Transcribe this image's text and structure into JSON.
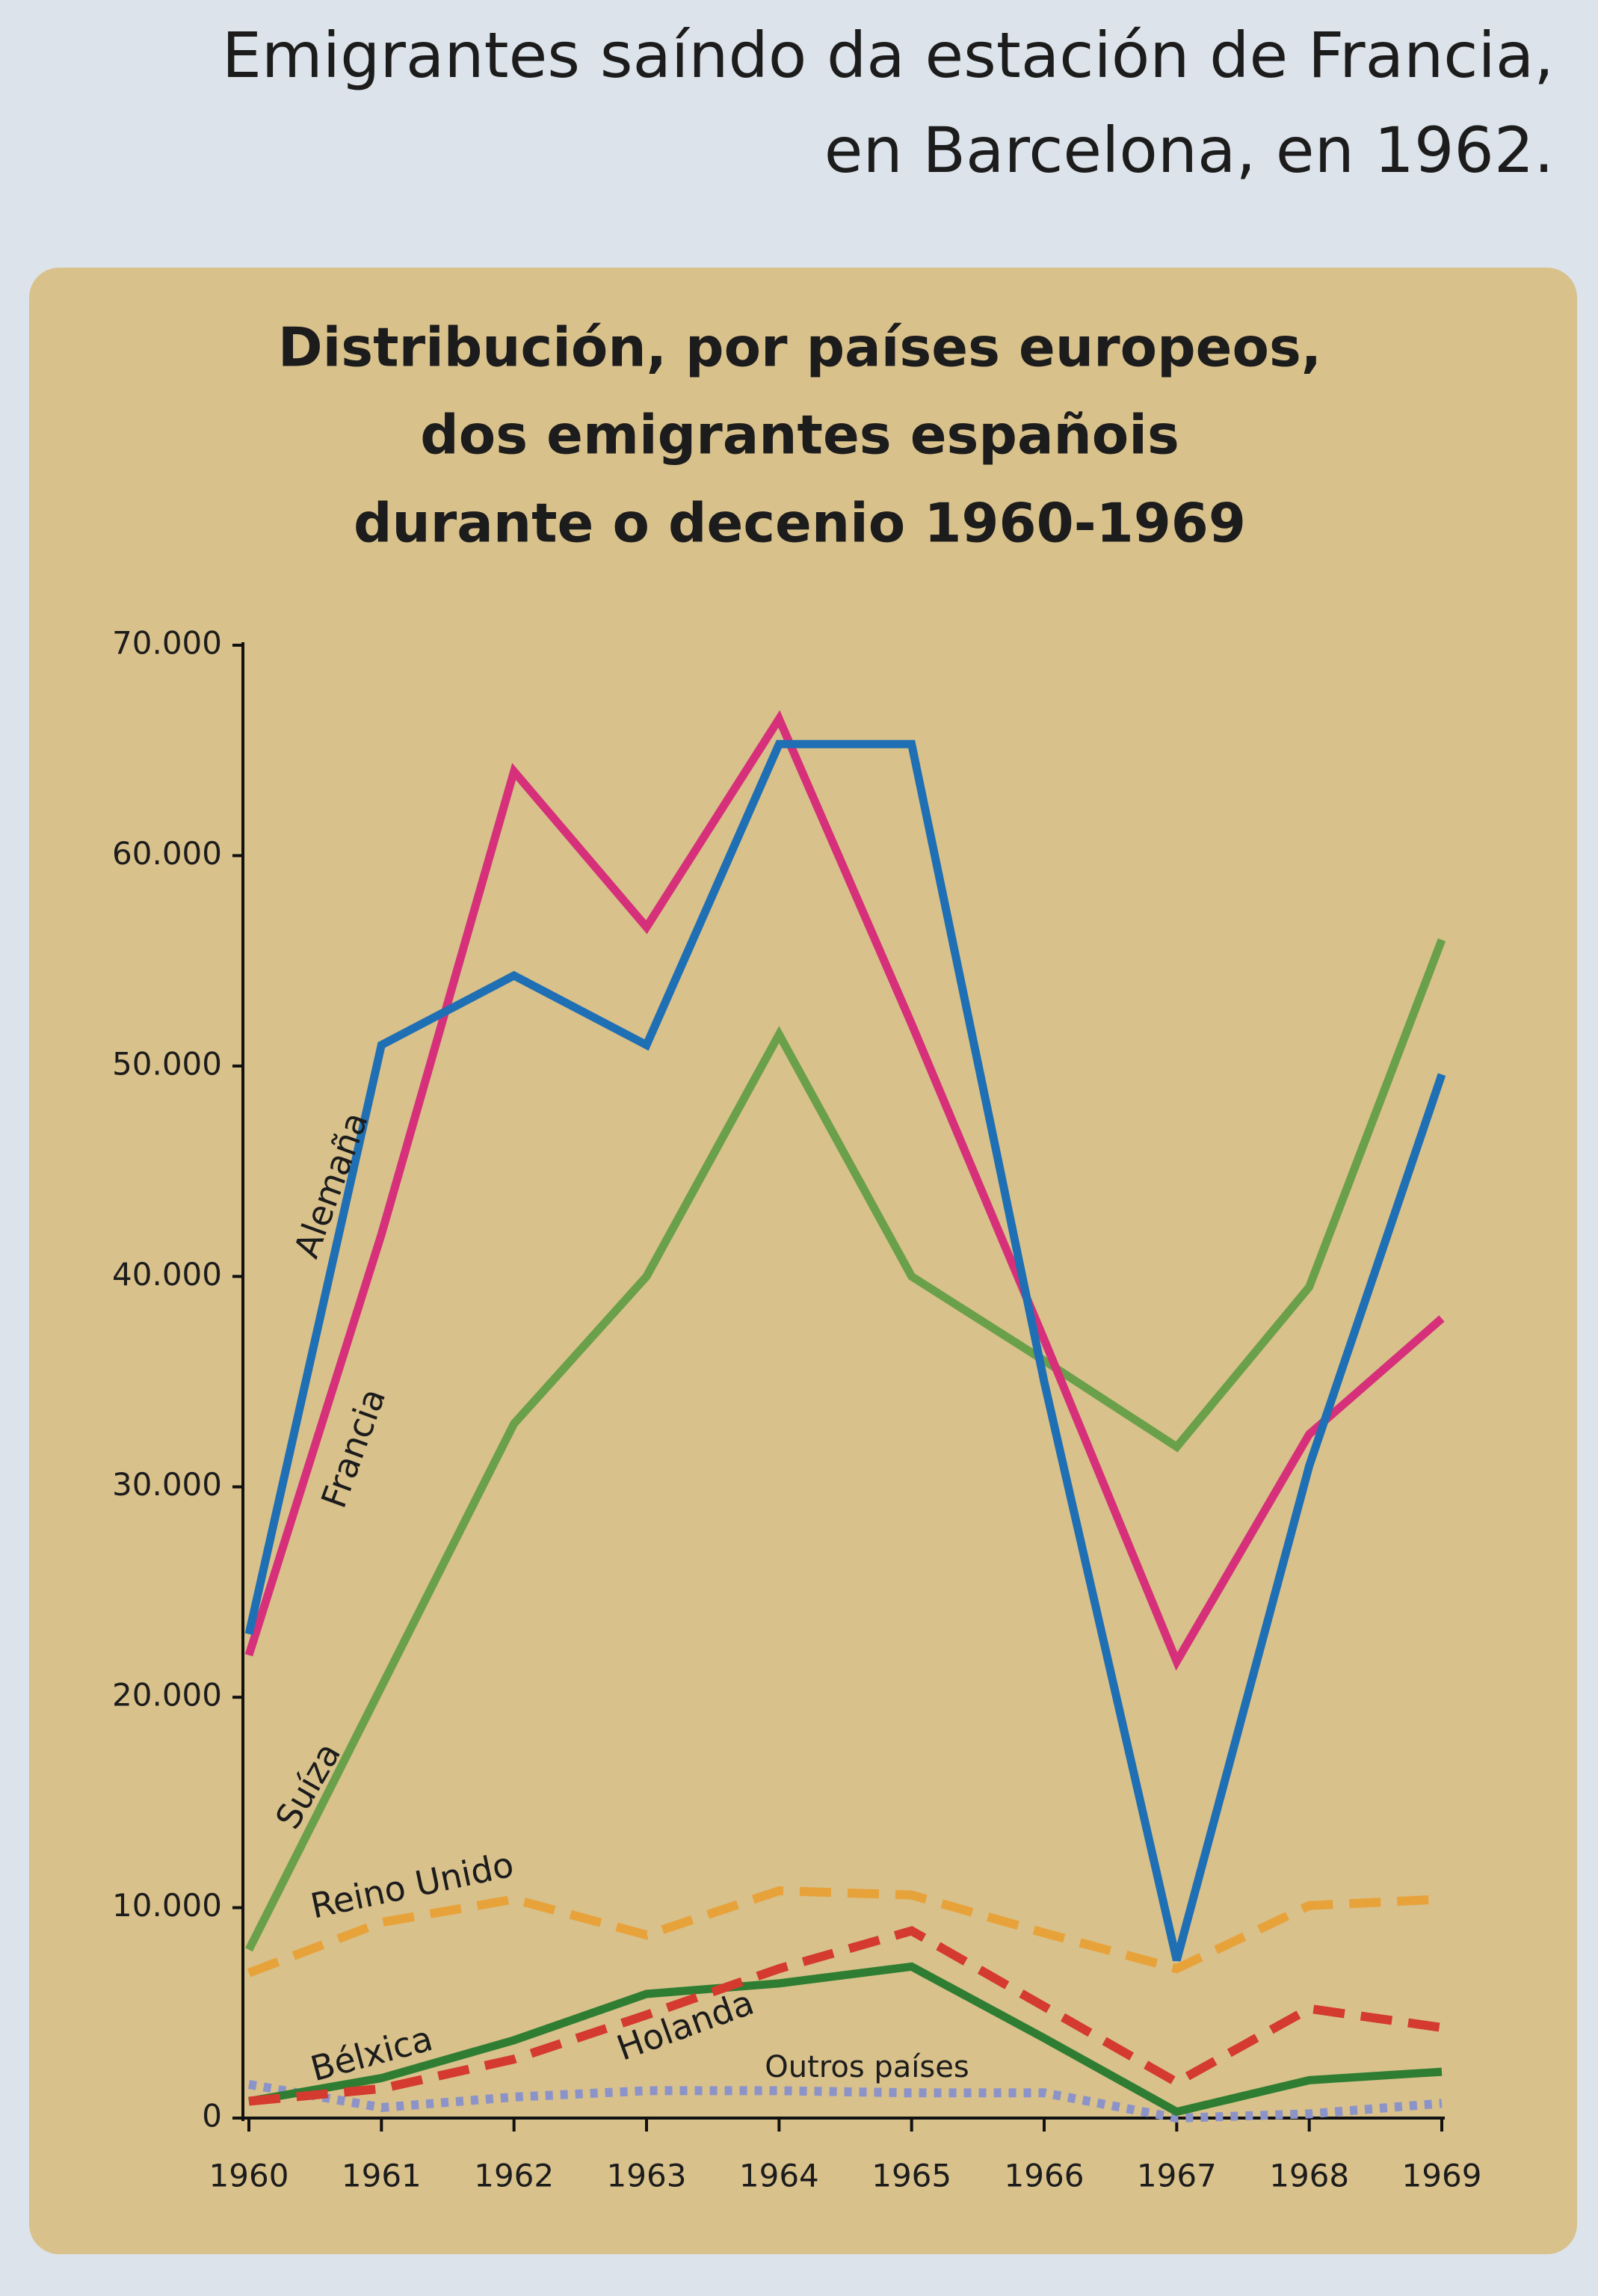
{
  "caption": [
    "Emigrantes saíndo da estación de Francia,",
    "en Barcelona, en 1962."
  ],
  "chart_data": {
    "type": "line",
    "title": [
      "Distribución, por países europeos,",
      "dos emigrantes españois",
      "durante o decenio 1960-1969"
    ],
    "categories": [
      "1960",
      "1961",
      "1962",
      "1963",
      "1964",
      "1965",
      "1966",
      "1967",
      "1968",
      "1969"
    ],
    "ylim": [
      0,
      70000
    ],
    "yticks": [
      0,
      {
        "value": 10000,
        "label": "10.000"
      },
      {
        "value": 20000,
        "label": "20.000"
      },
      {
        "value": 30000,
        "label": "30.000"
      },
      {
        "value": 40000,
        "label": "40.000"
      },
      {
        "value": 50000,
        "label": "50.000"
      },
      {
        "value": 60000,
        "label": "60.000"
      },
      {
        "value": 70000,
        "label": "70.000"
      }
    ],
    "series": [
      {
        "name": "Outros países",
        "color": "#8c93c8",
        "style": "dotted",
        "values": [
          1600,
          500,
          1000,
          1300,
          1300,
          1200,
          1200,
          0,
          200,
          700
        ]
      },
      {
        "name": "Bélxica",
        "color": "#2f7d32",
        "style": "solid",
        "values": [
          800,
          1900,
          3700,
          5900,
          6400,
          7200,
          3800,
          300,
          1800,
          2200
        ]
      },
      {
        "name": "Holanda",
        "color": "#d43a2e",
        "style": "dashed",
        "values": [
          800,
          1400,
          2800,
          4900,
          7100,
          8900,
          5300,
          1700,
          5200,
          4300
        ]
      },
      {
        "name": "Reino Unido",
        "color": "#e8a23a",
        "style": "dashed",
        "values": [
          6900,
          9300,
          10400,
          8700,
          10800,
          10600,
          8800,
          7100,
          10100,
          10400
        ]
      },
      {
        "name": "Suíza",
        "color": "#6aa04a",
        "style": "solid",
        "values": [
          8000,
          20500,
          33000,
          40000,
          51500,
          40000,
          36000,
          31900,
          39500,
          56000
        ]
      },
      {
        "name": "Francia",
        "color": "#d6307a",
        "style": "solid",
        "values": [
          22000,
          42000,
          64000,
          56600,
          66500,
          52000,
          37000,
          21700,
          32500,
          38000
        ]
      },
      {
        "name": "Alemaña",
        "color": "#1f6fb4",
        "style": "solid",
        "values": [
          23000,
          51000,
          54300,
          51000,
          65300,
          65300,
          35000,
          7500,
          31000,
          49600
        ]
      }
    ]
  }
}
